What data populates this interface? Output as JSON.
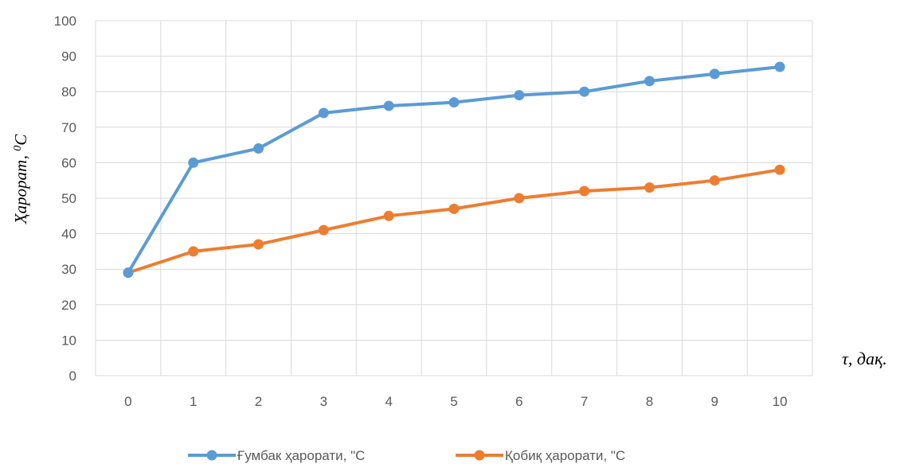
{
  "chart_data": {
    "type": "line",
    "x": [
      0,
      1,
      2,
      3,
      4,
      5,
      6,
      7,
      8,
      9,
      10
    ],
    "series": [
      {
        "name": "Ғумбак ҳарорати, \"С",
        "color": "#5B9BD5",
        "values": [
          29,
          60,
          64,
          74,
          76,
          77,
          79,
          80,
          83,
          85,
          87
        ]
      },
      {
        "name": "Қобиқ ҳарорати, \"С",
        "color": "#ED7D31",
        "values": [
          29,
          35,
          37,
          41,
          45,
          47,
          50,
          52,
          53,
          55,
          58
        ]
      }
    ],
    "ylabel_main": "Ҳарорат, ",
    "ylabel_sup": "0",
    "ylabel_unit": "С",
    "xlabel": "τ, дақ.",
    "ylim": [
      0,
      100
    ],
    "yticks": [
      0,
      10,
      20,
      30,
      40,
      50,
      60,
      70,
      80,
      90,
      100
    ],
    "xticks": [
      "0",
      "1",
      "2",
      "3",
      "4",
      "5",
      "6",
      "7",
      "8",
      "9",
      "10"
    ],
    "grid": true,
    "legend_position": "bottom"
  }
}
